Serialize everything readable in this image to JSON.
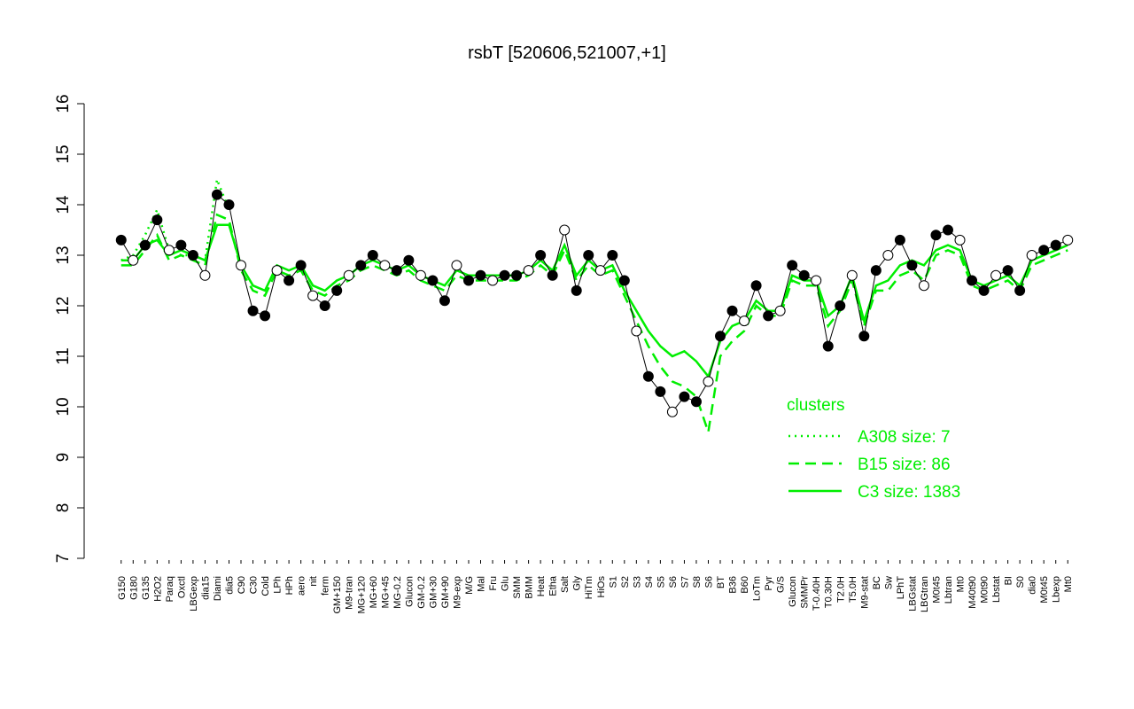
{
  "chart_data": {
    "type": "line",
    "title": "rsbT [520606,521007,+1]",
    "categories": [
      "G150",
      "G180",
      "G135",
      "H2O2",
      "Paraq",
      "Oxctl",
      "LBGexp",
      "dia15",
      "Diami",
      "dia5",
      "C90",
      "C30",
      "Cold",
      "LPh",
      "HPh",
      "aero",
      "nit",
      "ferm",
      "GM+150",
      "M9-tran",
      "MG+120",
      "MG+60",
      "MG+45",
      "MG-0.2",
      "Glucon",
      "GM-0.2",
      "GM+30",
      "GM+90",
      "M9-exp",
      "M/G",
      "Mal",
      "Fru",
      "Glu",
      "SMM",
      "BMM",
      "Heat",
      "Etha",
      "Salt",
      "Gly",
      "HiTm",
      "HiOs",
      "S1",
      "S2",
      "S3",
      "S4",
      "S5",
      "S6",
      "S7",
      "S8",
      "S6",
      "BT",
      "B36",
      "B60",
      "LoTm",
      "Pyr",
      "G/S",
      "Glucon",
      "SMMPr",
      "T-0.40H",
      "T0.30H",
      "T2.0H",
      "T5.0H",
      "M9-stat",
      "BC",
      "Sw",
      "LPhT",
      "LBGstat",
      "LBGtran",
      "M0t45",
      "Lbtran",
      "Mt0",
      "M40t90",
      "M0t90",
      "Lbstat",
      "BI",
      "S0",
      "dia0",
      "M0t45",
      "Lbexp",
      "Mt0"
    ],
    "values": [
      13.3,
      12.9,
      13.2,
      13.7,
      13.1,
      13.2,
      13.0,
      12.6,
      14.2,
      14.0,
      12.8,
      11.9,
      11.8,
      12.7,
      12.5,
      12.8,
      12.2,
      12.0,
      12.3,
      12.6,
      12.8,
      13.0,
      12.8,
      12.7,
      12.9,
      12.6,
      12.5,
      12.1,
      12.8,
      12.5,
      12.6,
      12.5,
      12.6,
      12.6,
      12.7,
      13.0,
      12.6,
      13.5,
      12.3,
      13.0,
      12.7,
      13.0,
      12.5,
      11.5,
      10.6,
      10.3,
      9.9,
      10.2,
      10.1,
      10.5,
      11.4,
      11.9,
      11.7,
      12.4,
      11.8,
      11.9,
      12.8,
      12.6,
      12.5,
      11.2,
      12.0,
      12.6,
      11.4,
      12.7,
      13.0,
      13.3,
      12.8,
      12.4,
      13.4,
      13.5,
      13.3,
      12.5,
      12.3,
      12.6,
      12.7,
      12.3,
      13.0,
      13.1,
      13.2,
      13.3
    ],
    "ylim": [
      7,
      16
    ],
    "yticks": [
      7,
      8,
      9,
      10,
      11,
      12,
      13,
      14,
      15,
      16
    ],
    "legend_title": "clusters",
    "legend": "right",
    "series": [
      {
        "name": "A308 size: 7",
        "color": "#00ee00",
        "dash": "dotted",
        "values": [
          12.9,
          13.0,
          13.4,
          13.9,
          13.1,
          13.0,
          13.0,
          12.9,
          14.5,
          13.9,
          null,
          null,
          null,
          null,
          null,
          null,
          null,
          null,
          null,
          null,
          null,
          null,
          null,
          null,
          null,
          null,
          null,
          null,
          null,
          null,
          null,
          null,
          null,
          null,
          null,
          null,
          null,
          null,
          null,
          null,
          null,
          null,
          null,
          null,
          null,
          null,
          null,
          null,
          null,
          null,
          null,
          null,
          null,
          null,
          null,
          null,
          null,
          null,
          null,
          null,
          null,
          null,
          null,
          null,
          null,
          null,
          null,
          null,
          null,
          null,
          null,
          null,
          null,
          null,
          null,
          null,
          null,
          null,
          null,
          null
        ]
      },
      {
        "name": "B15 size: 86",
        "color": "#00ee00",
        "dash": "dashed",
        "values": [
          12.8,
          12.8,
          13.1,
          13.4,
          12.9,
          13.0,
          12.9,
          12.8,
          13.8,
          13.7,
          12.7,
          12.3,
          12.2,
          12.7,
          12.6,
          12.7,
          12.3,
          12.2,
          12.4,
          12.5,
          12.7,
          12.8,
          12.7,
          12.6,
          12.7,
          12.5,
          12.4,
          12.3,
          12.6,
          12.5,
          12.5,
          12.5,
          12.5,
          12.5,
          12.6,
          12.8,
          12.6,
          13.1,
          12.5,
          12.8,
          12.6,
          12.7,
          12.2,
          11.7,
          11.2,
          10.8,
          10.5,
          10.4,
          10.2,
          9.5,
          11.0,
          11.3,
          11.5,
          12.0,
          11.8,
          11.8,
          12.5,
          12.4,
          12.4,
          11.6,
          11.9,
          12.5,
          11.6,
          12.3,
          12.3,
          12.6,
          12.7,
          12.5,
          13.0,
          13.1,
          13.0,
          12.4,
          12.3,
          12.4,
          12.5,
          12.3,
          12.8,
          12.9,
          13.0,
          13.1
        ]
      },
      {
        "name": "C3 size: 1383",
        "color": "#00ee00",
        "dash": "solid",
        "values": [
          12.9,
          12.9,
          13.2,
          13.3,
          13.0,
          13.1,
          13.0,
          12.9,
          13.6,
          13.6,
          12.8,
          12.4,
          12.3,
          12.8,
          12.7,
          12.8,
          12.4,
          12.3,
          12.5,
          12.6,
          12.8,
          12.9,
          12.8,
          12.7,
          12.8,
          12.6,
          12.5,
          12.4,
          12.7,
          12.6,
          12.6,
          12.6,
          12.6,
          12.6,
          12.7,
          12.9,
          12.7,
          13.2,
          12.6,
          12.9,
          12.7,
          12.8,
          12.3,
          11.9,
          11.5,
          11.2,
          11.0,
          11.1,
          10.9,
          10.6,
          11.3,
          11.6,
          11.7,
          12.1,
          11.9,
          11.9,
          12.6,
          12.5,
          12.5,
          11.8,
          12.0,
          12.6,
          11.7,
          12.4,
          12.5,
          12.8,
          12.9,
          12.8,
          13.1,
          13.2,
          13.1,
          12.5,
          12.4,
          12.5,
          12.6,
          12.4,
          12.9,
          13.0,
          13.1,
          13.2
        ]
      }
    ]
  }
}
